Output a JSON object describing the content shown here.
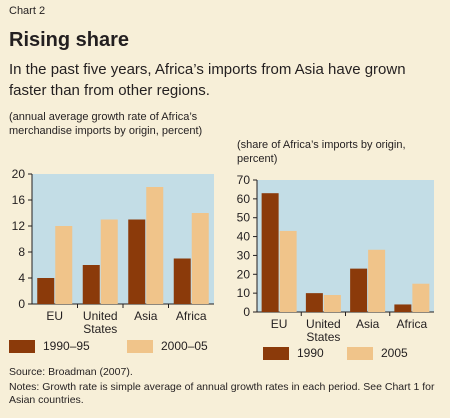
{
  "header": {
    "label": "Chart 2",
    "title": "Rising share",
    "subtitle": "In the past five years, Africa’s imports from Asia have grown faster than from other regions."
  },
  "colors": {
    "series1": "#8b3a0a",
    "series2": "#f0c48a",
    "plot_bg": "#c3dde6",
    "page_bg": "#f7efd8"
  },
  "chart_data": [
    {
      "type": "bar",
      "title": "",
      "ylabel": "(annual average growth rate of Africa’s merchandise imports by origin, percent)",
      "categories": [
        "EU",
        "United States",
        "Asia",
        "Africa"
      ],
      "ylim": [
        0,
        20
      ],
      "yticks": [
        0,
        4,
        8,
        12,
        16,
        20
      ],
      "series": [
        {
          "name": "1990–95",
          "values": [
            4,
            6,
            13,
            7
          ]
        },
        {
          "name": "2000–05",
          "values": [
            12,
            13,
            18,
            14
          ]
        }
      ],
      "legend": "bottom",
      "grid": false
    },
    {
      "type": "bar",
      "title": "",
      "ylabel": "(share of Africa’s imports by origin, percent)",
      "categories": [
        "EU",
        "United States",
        "Asia",
        "Africa"
      ],
      "ylim": [
        0,
        70
      ],
      "yticks": [
        0,
        10,
        20,
        30,
        40,
        50,
        60,
        70
      ],
      "series": [
        {
          "name": "1990",
          "values": [
            63,
            10,
            23,
            4
          ]
        },
        {
          "name": "2005",
          "values": [
            43,
            9,
            33,
            15
          ]
        }
      ],
      "legend": "bottom",
      "grid": false
    }
  ],
  "footer": {
    "source": "Source: Broadman (2007).",
    "notes": "Notes: Growth rate is simple average of annual growth rates in each period. See Chart 1 for Asian countries."
  }
}
